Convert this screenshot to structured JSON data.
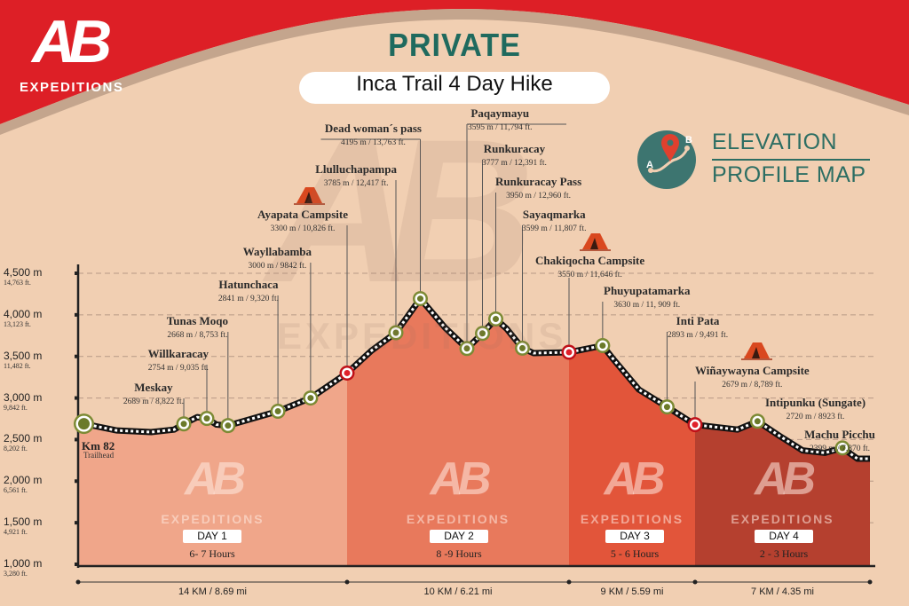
{
  "brand": {
    "logo_letters": "AB",
    "logo_name": "EXPEDITIONS"
  },
  "header": {
    "eyebrow": "PRIVATE",
    "title": "Inca Trail 4 Day Hike"
  },
  "badge": {
    "line1": "ELEVATION",
    "line2": "PROFILE MAP",
    "point_a": "A",
    "point_b": "B",
    "icon": "map-pin-route-icon"
  },
  "colors": {
    "header_red": "#dd1f26",
    "background": "#f1cfb2",
    "band": "#c4a58d",
    "teal": "#1f6a5e",
    "badge_circle": "#3d7570",
    "waypoint_green": "#6b7a2a",
    "campsite_red": "#e0202a"
  },
  "chart_data": {
    "type": "area",
    "title": "",
    "xlabel": "",
    "ylabel": "",
    "ylim": [
      1000,
      4500
    ],
    "xlim_km": [
      0,
      40
    ],
    "grid": "dashed horizontal",
    "y_ticks": [
      {
        "value": 4500,
        "m": "4,500 m",
        "ft": "14,763 ft."
      },
      {
        "value": 4000,
        "m": "4,000 m",
        "ft": "13,123 ft."
      },
      {
        "value": 3500,
        "m": "3,500 m",
        "ft": "11,482 ft."
      },
      {
        "value": 3000,
        "m": "3,000 m",
        "ft": "9,842 ft."
      },
      {
        "value": 2500,
        "m": "2,500 m",
        "ft": "8,202 ft."
      },
      {
        "value": 2000,
        "m": "2,000 m",
        "ft": "6,561 ft."
      },
      {
        "value": 1500,
        "m": "1,500 m",
        "ft": "4,921 ft."
      },
      {
        "value": 1000,
        "m": "1,000 m",
        "ft": "3,280 ft."
      }
    ],
    "profile": [
      [
        0,
        2680
      ],
      [
        0.3,
        2690
      ],
      [
        2.0,
        2610
      ],
      [
        3.8,
        2590
      ],
      [
        5.0,
        2620
      ],
      [
        5.5,
        2689
      ],
      [
        6.2,
        2770
      ],
      [
        6.7,
        2754
      ],
      [
        7.2,
        2680
      ],
      [
        7.8,
        2668
      ],
      [
        10.4,
        2841
      ],
      [
        12.1,
        3000
      ],
      [
        14.0,
        3300
      ],
      [
        15.1,
        3570
      ],
      [
        16.2,
        3785
      ],
      [
        17.3,
        4195
      ],
      [
        18.4,
        3850
      ],
      [
        19.4,
        3595
      ],
      [
        20.1,
        3777
      ],
      [
        20.7,
        3950
      ],
      [
        21.2,
        3830
      ],
      [
        21.9,
        3599
      ],
      [
        22.4,
        3540
      ],
      [
        24.0,
        3550
      ],
      [
        26.4,
        3630
      ],
      [
        27.1,
        3480
      ],
      [
        29.0,
        3100
      ],
      [
        31.0,
        2893
      ],
      [
        33.0,
        2679
      ],
      [
        34.7,
        2620
      ],
      [
        35.5,
        2720
      ],
      [
        36.4,
        2540
      ],
      [
        37.3,
        2370
      ],
      [
        38.2,
        2340
      ],
      [
        38.9,
        2399
      ],
      [
        39.5,
        2270
      ],
      [
        40.0,
        2270
      ]
    ],
    "waypoints": [
      {
        "name": "Km 82",
        "detail": "Trailhead",
        "km": 0.3,
        "elevation": 2690,
        "type": "start"
      },
      {
        "name": "Meskay",
        "detail": "2689 m / 8,822 ft.",
        "km": 5.5,
        "elevation": 2689,
        "type": "point"
      },
      {
        "name": "Willkaracay",
        "detail": "2754 m / 9,035 ft.",
        "km": 6.7,
        "elevation": 2754,
        "type": "point"
      },
      {
        "name": "Tunas Moqo",
        "detail": "2668 m / 8,753 ft.",
        "km": 7.8,
        "elevation": 2668,
        "type": "point"
      },
      {
        "name": "Hatunchaca",
        "detail": "2841 m / 9,320 ft.",
        "km": 10.4,
        "elevation": 2841,
        "type": "point"
      },
      {
        "name": "Wayllabamba",
        "detail": "3000 m / 9842 ft.",
        "km": 12.1,
        "elevation": 3000,
        "type": "point"
      },
      {
        "name": "Ayapata Campsite",
        "detail": "3300 m / 10,826 ft.",
        "km": 14.0,
        "elevation": 3300,
        "type": "campsite"
      },
      {
        "name": "Llulluchapampa",
        "detail": "3785 m / 12,417 ft.",
        "km": 16.2,
        "elevation": 3785,
        "type": "point"
      },
      {
        "name": "Dead woman´s pass",
        "detail": "4195 m / 13,763 ft.",
        "km": 17.3,
        "elevation": 4195,
        "type": "point"
      },
      {
        "name": "Paqaymayu",
        "detail": "3595 m / 11,794 ft.",
        "km": 19.4,
        "elevation": 3595,
        "type": "point"
      },
      {
        "name": "Runkuracay",
        "detail": "3777 m / 12,391 ft.",
        "km": 20.1,
        "elevation": 3777,
        "type": "point"
      },
      {
        "name": "Runkuracay  Pass",
        "detail": "3950 m / 12,960 ft.",
        "km": 20.7,
        "elevation": 3950,
        "type": "point"
      },
      {
        "name": "Sayaqmarka",
        "detail": "3599 m / 11,807 ft.",
        "km": 21.9,
        "elevation": 3599,
        "type": "point"
      },
      {
        "name": "Chakiqocha Campsite",
        "detail": "3550 m / 11,646 ft.",
        "km": 24.0,
        "elevation": 3550,
        "type": "campsite"
      },
      {
        "name": "Phuyupatamarka",
        "detail": "3630 m / 11, 909 ft.",
        "km": 26.4,
        "elevation": 3630,
        "type": "point"
      },
      {
        "name": "Inti Pata",
        "detail": "2893 m / 9,491 ft.",
        "km": 31.0,
        "elevation": 2893,
        "type": "point"
      },
      {
        "name": "Wiñaywayna Campsite",
        "detail": "2679 m / 8,789 ft.",
        "km": 33.0,
        "elevation": 2679,
        "type": "campsite"
      },
      {
        "name": "Intipunku (Sungate)",
        "detail": "2720 m / 8923 ft.",
        "km": 35.5,
        "elevation": 2720,
        "type": "point"
      },
      {
        "name": "Machu  Picchu",
        "detail": "2399 m / 7,870 ft.",
        "km": 38.9,
        "elevation": 2399,
        "type": "point"
      }
    ],
    "days": [
      {
        "label": "DAY 1",
        "hours": "6- 7 Hours",
        "distance": "14 KM / 8.69 mi",
        "km_start": 0,
        "km_end": 14,
        "color": "#f0a68a"
      },
      {
        "label": "DAY 2",
        "hours": "8 -9 Hours",
        "distance": "10 KM / 6.21 mi",
        "km_start": 14,
        "km_end": 24,
        "color": "#e8795c"
      },
      {
        "label": "DAY 3",
        "hours": "5 - 6 Hours",
        "distance": "9 KM / 5.59 mi",
        "km_start": 24,
        "km_end": 33,
        "color": "#e2553a"
      },
      {
        "label": "DAY 4",
        "hours": "2 - 3 Hours",
        "distance": "7 KM / 4.35 mi",
        "km_start": 33,
        "km_end": 40,
        "color": "#b5402f"
      }
    ]
  }
}
